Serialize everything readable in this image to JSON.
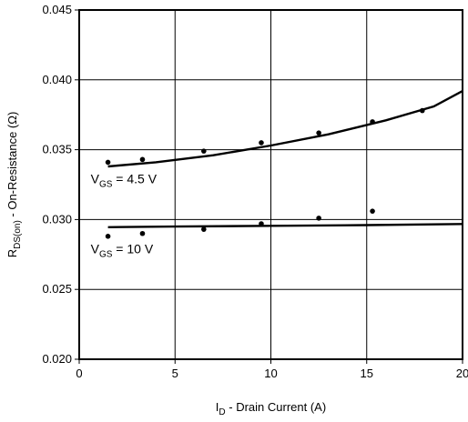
{
  "chart_data": {
    "type": "scatter",
    "xlabel": {
      "main": "I",
      "sub": "D",
      "rest": " - Drain Current (A)"
    },
    "ylabel": {
      "main": "R",
      "sub": "DS(on)",
      "rest": " - On-Resistance (Ω)"
    },
    "xlim": [
      0,
      20
    ],
    "ylim": [
      0.02,
      0.045
    ],
    "x_ticks": [
      0,
      5,
      10,
      15,
      20
    ],
    "x_tick_labels": [
      "0",
      "5",
      "10",
      "15",
      "20"
    ],
    "y_ticks": [
      0.02,
      0.025,
      0.03,
      0.035,
      0.04,
      0.045
    ],
    "y_tick_labels": [
      "0.020",
      "0.025",
      "0.030",
      "0.035",
      "0.040",
      "0.045"
    ],
    "grid": true,
    "series": [
      {
        "name": {
          "main": "V",
          "sub": "GS",
          "rest": " = 4.5 V"
        },
        "points": [
          {
            "x": 1.5,
            "y": 0.0341
          },
          {
            "x": 3.3,
            "y": 0.0343
          },
          {
            "x": 6.5,
            "y": 0.0349
          },
          {
            "x": 9.5,
            "y": 0.0355
          },
          {
            "x": 12.5,
            "y": 0.0362
          },
          {
            "x": 15.3,
            "y": 0.037
          },
          {
            "x": 17.9,
            "y": 0.0378
          }
        ],
        "fit": [
          {
            "x": 1.5,
            "y": 0.0338
          },
          {
            "x": 4,
            "y": 0.0341
          },
          {
            "x": 7,
            "y": 0.0346
          },
          {
            "x": 10,
            "y": 0.0353
          },
          {
            "x": 13,
            "y": 0.0361
          },
          {
            "x": 16,
            "y": 0.0371
          },
          {
            "x": 18.5,
            "y": 0.0381
          },
          {
            "x": 20,
            "y": 0.0392
          }
        ]
      },
      {
        "name": {
          "main": "V",
          "sub": "GS",
          "rest": " = 10 V"
        },
        "points": [
          {
            "x": 1.5,
            "y": 0.0288
          },
          {
            "x": 3.3,
            "y": 0.029
          },
          {
            "x": 6.5,
            "y": 0.0293
          },
          {
            "x": 9.5,
            "y": 0.0297
          },
          {
            "x": 12.5,
            "y": 0.0301
          },
          {
            "x": 15.3,
            "y": 0.0306
          }
        ],
        "fit": [
          {
            "x": 1.5,
            "y": 0.02945
          },
          {
            "x": 5,
            "y": 0.0295
          },
          {
            "x": 10,
            "y": 0.02955
          },
          {
            "x": 15,
            "y": 0.0296
          },
          {
            "x": 20,
            "y": 0.02968
          }
        ]
      }
    ]
  }
}
